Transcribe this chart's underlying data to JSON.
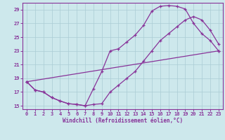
{
  "bg_color": "#cde8ec",
  "grid_color": "#aaccd4",
  "line_color": "#883399",
  "xlabel": "Windchill (Refroidissement éolien,°C)",
  "xlim": [
    -0.5,
    23.5
  ],
  "ylim": [
    14.5,
    30.0
  ],
  "xticks": [
    0,
    1,
    2,
    3,
    4,
    5,
    6,
    7,
    8,
    9,
    10,
    11,
    12,
    13,
    14,
    15,
    16,
    17,
    18,
    19,
    20,
    21,
    22,
    23
  ],
  "yticks": [
    15,
    17,
    19,
    21,
    23,
    25,
    27,
    29
  ],
  "series": [
    {
      "x": [
        0,
        23
      ],
      "y": [
        18.5,
        23.0
      ]
    },
    {
      "x": [
        0,
        1,
        2,
        3,
        4,
        5,
        6,
        7,
        8,
        9,
        10,
        11,
        12,
        13,
        14,
        15,
        16,
        17,
        18,
        19,
        20,
        21,
        22,
        23
      ],
      "y": [
        18.5,
        17.3,
        17.0,
        16.2,
        15.7,
        15.3,
        15.2,
        15.0,
        15.2,
        15.3,
        17.0,
        18.0,
        19.0,
        20.0,
        21.5,
        23.0,
        24.5,
        25.5,
        26.5,
        27.5,
        28.0,
        27.5,
        26.0,
        24.0
      ]
    },
    {
      "x": [
        0,
        1,
        2,
        3,
        4,
        5,
        6,
        7,
        8,
        9,
        10,
        11,
        12,
        13,
        14,
        15,
        16,
        17,
        18,
        19,
        20,
        21,
        22,
        23
      ],
      "y": [
        18.5,
        17.3,
        17.0,
        16.2,
        15.7,
        15.3,
        15.2,
        15.0,
        17.5,
        20.0,
        23.0,
        23.3,
        24.3,
        25.3,
        26.7,
        28.8,
        29.5,
        29.6,
        29.5,
        29.1,
        27.0,
        25.5,
        24.5,
        23.0
      ]
    }
  ]
}
